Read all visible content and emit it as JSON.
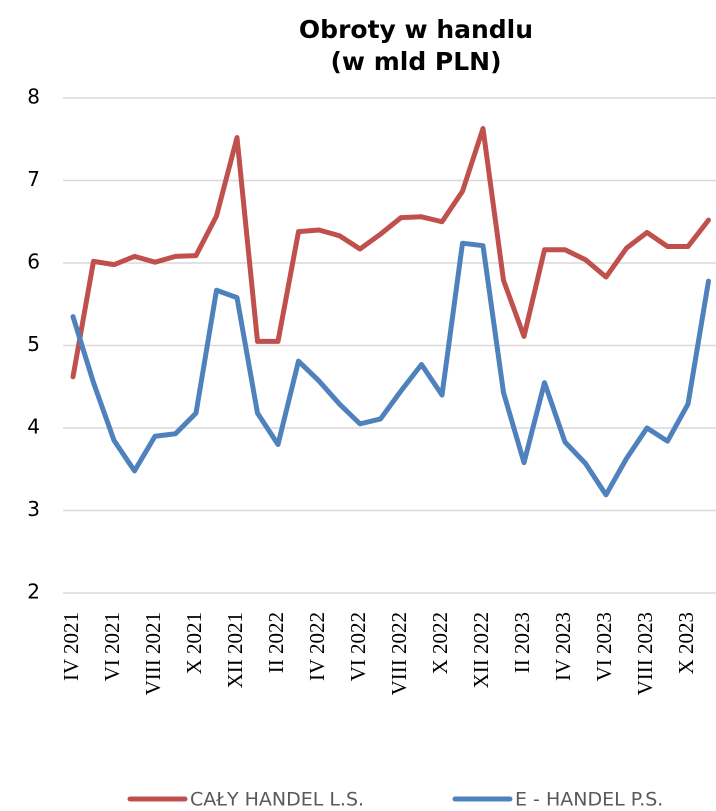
{
  "chart_data": {
    "type": "line",
    "title": [
      "Obroty w handlu",
      "(w mld PLN)"
    ],
    "categories": [
      "IV 2021",
      null,
      "VI 2021",
      null,
      "VIII 2021",
      null,
      "X 2021",
      null,
      "XII 2021",
      null,
      "II 2022",
      null,
      "IV 2022",
      null,
      "VI 2022",
      null,
      "VIII 2022",
      null,
      "X 2022",
      null,
      "XII 2022",
      null,
      "II 2023",
      null,
      "IV 2023",
      null,
      "VI 2023",
      null,
      "VIII 2023",
      null,
      "X 2023",
      null
    ],
    "series": [
      {
        "name": "CAŁY HANDEL L.S.",
        "color": "#c0504d",
        "values": [
          4.62,
          6.02,
          5.98,
          6.08,
          6.01,
          6.08,
          6.09,
          6.57,
          7.52,
          5.05,
          5.05,
          6.38,
          6.4,
          6.33,
          6.17,
          6.35,
          6.55,
          6.56,
          6.5,
          6.87,
          7.63,
          5.79,
          5.11,
          6.16,
          6.16,
          6.04,
          5.83,
          6.18,
          6.37,
          6.2,
          6.2,
          6.52
        ]
      },
      {
        "name": "E - HANDEL P.S.",
        "color": "#4f81bd",
        "values": [
          5.35,
          4.55,
          3.85,
          3.48,
          3.9,
          3.93,
          4.18,
          5.67,
          5.58,
          4.18,
          3.8,
          4.81,
          4.57,
          4.29,
          4.05,
          4.11,
          4.45,
          4.77,
          4.4,
          6.24,
          6.21,
          4.43,
          3.58,
          4.55,
          3.83,
          3.57,
          3.19,
          3.63,
          4.0,
          3.84,
          4.29,
          5.78
        ]
      }
    ],
    "ylim": [
      2,
      8
    ],
    "yticks": [
      2,
      3,
      4,
      5,
      6,
      7,
      8
    ],
    "grid": true,
    "legend": "bottom"
  }
}
